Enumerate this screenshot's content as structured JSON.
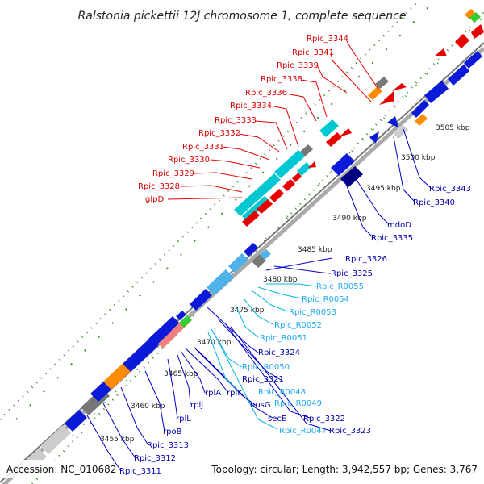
{
  "title": "Ralstonia pickettii 12J chromosome 1, complete sequence",
  "footer": {
    "accession": "Accession: NC_010682",
    "summary": "Topology: circular; Length: 3,942,557 bp; Genes: 3,767"
  },
  "colors": {
    "forward": "#e80000",
    "reverse": "#0000cc",
    "rna": "#00c8d2",
    "grey": "#777777",
    "light_grey": "#cccccc",
    "orange": "#ff8c00",
    "pink": "#f08080",
    "green": "#33cc33",
    "light_blue": "#4fb3ea",
    "gc_dots": "#3a8a2a"
  },
  "ticks": [
    {
      "label": "3455 kbp"
    },
    {
      "label": "3460 kbp"
    },
    {
      "label": "3465 kbp"
    },
    {
      "label": "3470 kbp"
    },
    {
      "label": "3475 kbp"
    },
    {
      "label": "3480 kbp"
    },
    {
      "label": "3485 kbp"
    },
    {
      "label": "3490 kbp"
    },
    {
      "label": "3495 kbp"
    },
    {
      "label": "3500 kbp"
    },
    {
      "label": "3505 kbp"
    }
  ],
  "labels_red": [
    "Rpic_3344",
    "Rpic_3341",
    "Rpic_3339",
    "Rpic_3338",
    "Rpic_3336",
    "Rpic_3334",
    "Rpic_3333",
    "Rpic_3332",
    "Rpic_3331",
    "Rpic_3330",
    "Rpic_3329",
    "Rpic_3328",
    "glpD"
  ],
  "labels_blue_right": [
    "Rpic_3343",
    "Rpic_3340",
    "mdoD",
    "Rpic_3335",
    "Rpic_3326",
    "Rpic_3325",
    "Rpic_R0055",
    "Rpic_R0054",
    "Rpic_R0053",
    "Rpic_R0052",
    "Rpic_R0051",
    "Rpic_3324",
    "Rpic_R0050",
    "Rpic_3321",
    "Rpic_R0048",
    "Rpic_R0049",
    "nusG",
    "Rpic_3322",
    "secE",
    "Rpic_3323",
    "Rpic_R0047"
  ],
  "labels_blue_bottom": [
    "rplA",
    "rplK",
    "rplJ",
    "rplL",
    "rpoB",
    "Rpic_3313",
    "Rpic_3312",
    "Rpic_3311"
  ]
}
